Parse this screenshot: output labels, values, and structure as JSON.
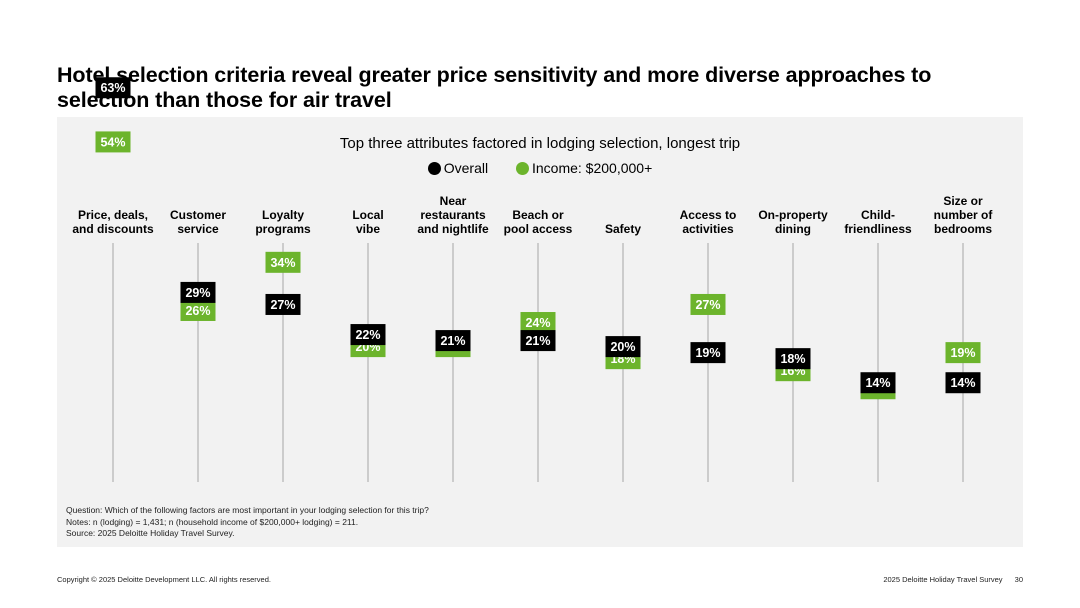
{
  "title": "Hotel selection criteria reveal greater price sensitivity and more diverse approaches to selection than those for air travel",
  "chart_data": {
    "type": "dot",
    "title": "Top three attributes factored in lodging selection, longest trip",
    "categories": [
      "Price, deals,\nand discounts",
      "Customer\nservice",
      "Loyalty\nprograms",
      "Local\nvibe",
      "Near\nrestaurants\nand nightlife",
      "Beach or\npool access",
      "Safety",
      "Access to\nactivities",
      "On-property\ndining",
      "Child-\nfriendliness",
      "Size or\nnumber of\nbedrooms"
    ],
    "series": [
      {
        "name": "Overall",
        "color": "#000000",
        "values": [
          63,
          29,
          27,
          22,
          21,
          21,
          20,
          19,
          18,
          14,
          14
        ]
      },
      {
        "name": "Income: $200,000+",
        "color": "#6cb42c",
        "values": [
          54,
          26,
          34,
          20,
          20,
          24,
          18,
          27,
          16,
          13,
          19
        ]
      }
    ],
    "value_suffix": "%",
    "ylim": [
      0,
      70
    ]
  },
  "notes": {
    "question": "Question: Which of the following factors are most important in your lodging selection for this trip?",
    "notes": "Notes: n (lodging) = 1,431; n (household income of $200,000+ lodging) = 211.",
    "source": "Source: 2025 Deloitte Holiday Travel Survey."
  },
  "footer": {
    "copyright": "Copyright © 2025 Deloitte Development LLC. All rights reserved.",
    "report": "2025 Deloitte Holiday Travel Survey",
    "page": "30"
  }
}
